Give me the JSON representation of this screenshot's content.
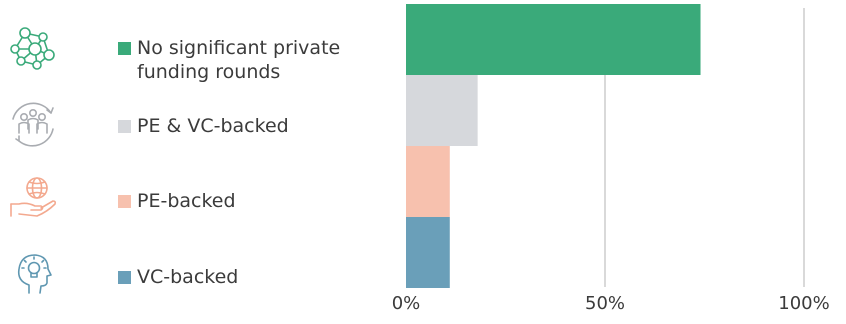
{
  "chart_data": {
    "type": "bar",
    "orientation": "horizontal",
    "categories": [
      "No significant private funding rounds",
      "PE & VC-backed",
      "PE-backed",
      "VC-backed"
    ],
    "values": [
      74,
      18,
      11,
      11
    ],
    "colors": [
      "#3aaa7a",
      "#d6d8dc",
      "#f7c1ae",
      "#6a9fb9"
    ],
    "icons": [
      "network-icon",
      "people-group-icon",
      "globe-in-hand-icon",
      "lightbulb-head-icon"
    ],
    "icon_colors": [
      "#3aaa7a",
      "#a9acb1",
      "#f3a98f",
      "#5f97b1"
    ],
    "xlim": [
      0,
      100
    ],
    "xticks": [
      "0%",
      "50%",
      "100%"
    ],
    "gridlines": [
      50,
      100
    ],
    "legend": "left"
  }
}
